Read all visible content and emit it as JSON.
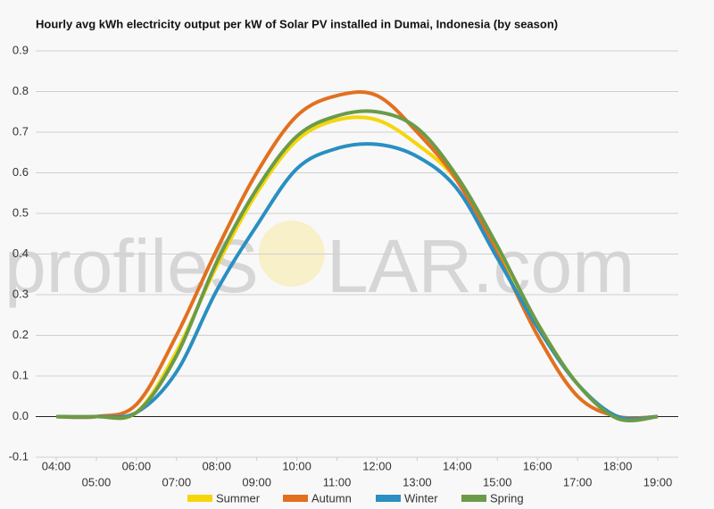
{
  "chart_data": {
    "type": "line",
    "title": "Hourly avg kWh electricity output per kW of Solar PV installed in Dumai, Indonesia (by season)",
    "watermark": [
      "profileS",
      "LAR.com"
    ],
    "categories": [
      "04:00",
      "05:00",
      "06:00",
      "07:00",
      "08:00",
      "09:00",
      "10:00",
      "11:00",
      "12:00",
      "13:00",
      "14:00",
      "15:00",
      "16:00",
      "17:00",
      "18:00",
      "19:00"
    ],
    "series": [
      {
        "name": "Summer",
        "color": "#f5d60a",
        "values": [
          0,
          0,
          0.01,
          0.16,
          0.37,
          0.55,
          0.68,
          0.73,
          0.73,
          0.67,
          0.58,
          0.41,
          0.23,
          0.08,
          0,
          0
        ]
      },
      {
        "name": "Autumn",
        "color": "#e2701f",
        "values": [
          0,
          0,
          0.03,
          0.2,
          0.41,
          0.6,
          0.74,
          0.79,
          0.79,
          0.7,
          0.58,
          0.4,
          0.2,
          0.05,
          0,
          0
        ]
      },
      {
        "name": "Winter",
        "color": "#2a8fc1",
        "values": [
          0,
          0,
          0.01,
          0.11,
          0.31,
          0.47,
          0.61,
          0.66,
          0.67,
          0.64,
          0.56,
          0.39,
          0.22,
          0.08,
          0,
          0
        ]
      },
      {
        "name": "Spring",
        "color": "#6b9b49",
        "values": [
          0,
          0,
          0.01,
          0.15,
          0.38,
          0.56,
          0.69,
          0.74,
          0.75,
          0.71,
          0.59,
          0.42,
          0.23,
          0.08,
          -0.005,
          0
        ]
      }
    ],
    "ylim": [
      -0.1,
      0.9
    ],
    "yticks": [
      -0.1,
      {
        "value": 0,
        "label": "0.0"
      },
      0.1,
      0.2,
      0.3,
      0.4,
      0.5,
      0.6,
      0.7,
      0.8,
      0.9
    ],
    "grid": true,
    "legend": "bottom"
  }
}
